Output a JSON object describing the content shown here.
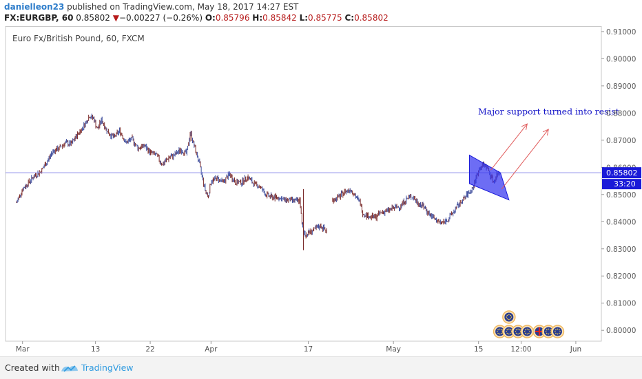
{
  "header": {
    "author": "danielleon23",
    "published": "published on TradingView.com, May 18, 2017 14:27 EST"
  },
  "quote": {
    "symbol": "FX:EURGBP, 60",
    "last": "0.85802",
    "arrow": "▼",
    "change": "−0.00227 (−0.26%)",
    "open_label": "O:",
    "open": "0.85796",
    "high_label": "H:",
    "high": "0.85842",
    "low_label": "L:",
    "low": "0.85775",
    "close_label": "C:",
    "close": "0.85802"
  },
  "chart_data": {
    "type": "candlestick",
    "title": "Euro Fx/British Pound, 60, FXCM",
    "ylim": [
      0.796,
      0.912
    ],
    "yticks": [
      "0.91000",
      "0.90000",
      "0.89000",
      "0.88000",
      "0.87000",
      "0.86000",
      "0.85000",
      "0.84000",
      "0.83000",
      "0.82000",
      "0.81000",
      "0.80000"
    ],
    "xticks": [
      {
        "label": "Mar",
        "day": 1
      },
      {
        "label": "13",
        "day": 13
      },
      {
        "label": "22",
        "day": 22
      },
      {
        "label": "Apr",
        "day": 32
      },
      {
        "label": "17",
        "day": 48
      },
      {
        "label": "May",
        "day": 62
      },
      {
        "label": "15",
        "day": 76
      },
      {
        "label": "12:00",
        "day": 83
      },
      {
        "label": "Jun",
        "day": 92
      }
    ],
    "series": [
      {
        "points": [
          [
            0.0,
            0.847
          ],
          [
            1.0,
            0.852
          ],
          [
            2.0,
            0.8545
          ],
          [
            3.0,
            0.857
          ],
          [
            4.0,
            0.8585
          ],
          [
            5.0,
            0.862
          ],
          [
            6.0,
            0.866
          ],
          [
            7.0,
            0.867
          ],
          [
            8.0,
            0.869
          ],
          [
            9.0,
            0.8685
          ],
          [
            10.0,
            0.872
          ],
          [
            11.0,
            0.875
          ],
          [
            12.0,
            0.879
          ],
          [
            12.7,
            0.878
          ],
          [
            13.3,
            0.874
          ],
          [
            14.0,
            0.8775
          ],
          [
            15.0,
            0.873
          ],
          [
            16.0,
            0.871
          ],
          [
            17.0,
            0.8735
          ],
          [
            18.0,
            0.869
          ],
          [
            19.0,
            0.8705
          ],
          [
            20.0,
            0.867
          ],
          [
            21.0,
            0.868
          ],
          [
            22.0,
            0.8655
          ],
          [
            23.0,
            0.8645
          ],
          [
            24.0,
            0.861
          ],
          [
            25.0,
            0.8635
          ],
          [
            26.0,
            0.8645
          ],
          [
            27.0,
            0.8665
          ],
          [
            28.0,
            0.865
          ],
          [
            28.6,
            0.873
          ],
          [
            29.2,
            0.868
          ],
          [
            30.0,
            0.862
          ],
          [
            30.5,
            0.857
          ],
          [
            31.0,
            0.852
          ],
          [
            31.5,
            0.849
          ],
          [
            32.0,
            0.855
          ],
          [
            33.0,
            0.856
          ],
          [
            34.0,
            0.8545
          ],
          [
            35.0,
            0.8575
          ],
          [
            36.0,
            0.8545
          ],
          [
            37.0,
            0.8545
          ],
          [
            38.0,
            0.8565
          ],
          [
            39.0,
            0.854
          ],
          [
            40.0,
            0.853
          ],
          [
            41.0,
            0.85
          ],
          [
            42.0,
            0.849
          ],
          [
            43.0,
            0.849
          ],
          [
            44.0,
            0.848
          ],
          [
            45.0,
            0.848
          ],
          [
            46.0,
            0.8475
          ],
          [
            46.6,
            0.848
          ],
          [
            47.0,
            0.838
          ],
          [
            47.5,
            0.835
          ],
          [
            48.0,
            0.836
          ],
          [
            49.0,
            0.837
          ],
          [
            50.0,
            0.8385
          ],
          [
            51.0,
            0.8365
          ]
        ]
      },
      {
        "points": [
          [
            52.0,
            0.848
          ],
          [
            53.0,
            0.849
          ],
          [
            54.0,
            0.851
          ],
          [
            55.0,
            0.852
          ],
          [
            55.7,
            0.8495
          ],
          [
            56.5,
            0.847
          ],
          [
            57.0,
            0.843
          ],
          [
            58.0,
            0.842
          ],
          [
            59.0,
            0.8415
          ],
          [
            60.0,
            0.8435
          ],
          [
            61.0,
            0.844
          ],
          [
            62.0,
            0.845
          ],
          [
            63.0,
            0.8455
          ],
          [
            64.0,
            0.848
          ],
          [
            65.0,
            0.8495
          ],
          [
            66.0,
            0.847
          ],
          [
            67.0,
            0.8455
          ],
          [
            68.0,
            0.8425
          ],
          [
            69.0,
            0.8405
          ],
          [
            70.0,
            0.8395
          ],
          [
            71.0,
            0.841
          ],
          [
            72.0,
            0.844
          ],
          [
            73.0,
            0.847
          ],
          [
            74.0,
            0.8495
          ],
          [
            74.5,
            0.851
          ],
          [
            75.0,
            0.852
          ],
          [
            75.5,
            0.8555
          ],
          [
            76.0,
            0.859
          ],
          [
            76.5,
            0.8605
          ],
          [
            77.0,
            0.861
          ],
          [
            77.5,
            0.8595
          ],
          [
            78.0,
            0.857
          ],
          [
            78.5,
            0.8545
          ],
          [
            79.0,
            0.8575
          ],
          [
            79.5,
            0.858
          ]
        ]
      }
    ],
    "last_price_line": 0.85802,
    "last_price_label": "0.85802",
    "countdown": "33:20",
    "annotation": "Major support turned into resist",
    "channel": {
      "p1": [
        74.5,
        0.8645
      ],
      "p2": [
        79.6,
        0.858
      ],
      "p3": [
        81.0,
        0.848
      ],
      "p4": [
        74.5,
        0.854
      ]
    },
    "arrows": [
      {
        "from": [
          78.0,
          0.859
        ],
        "to": [
          84.0,
          0.876
        ]
      },
      {
        "from": [
          79.8,
          0.852
        ],
        "to": [
          87.5,
          0.874
        ]
      }
    ],
    "event_icons": [
      {
        "day": 81.0,
        "row": 1,
        "kind": "eu"
      },
      {
        "day": 79.5,
        "row": 0,
        "kind": "eu"
      },
      {
        "day": 81.0,
        "row": 0,
        "kind": "eu"
      },
      {
        "day": 82.5,
        "row": 0,
        "kind": "eu"
      },
      {
        "day": 84.0,
        "row": 0,
        "kind": "eu"
      },
      {
        "day": 86.0,
        "row": 0,
        "kind": "uk"
      },
      {
        "day": 87.5,
        "row": 0,
        "kind": "eu"
      },
      {
        "day": 89.0,
        "row": 0,
        "kind": "eu"
      }
    ],
    "colors": {
      "price": "#7b2b2b",
      "price_alt": "#3b4a9b",
      "last_line": "#8b8bea",
      "label_bg": "#1a1ad8",
      "channel_fill": "#3535f0",
      "arrow": "#e05a5a",
      "annotation": "#1515c8"
    }
  },
  "footer": {
    "created_with": "Created with",
    "brand": "TradingView"
  }
}
